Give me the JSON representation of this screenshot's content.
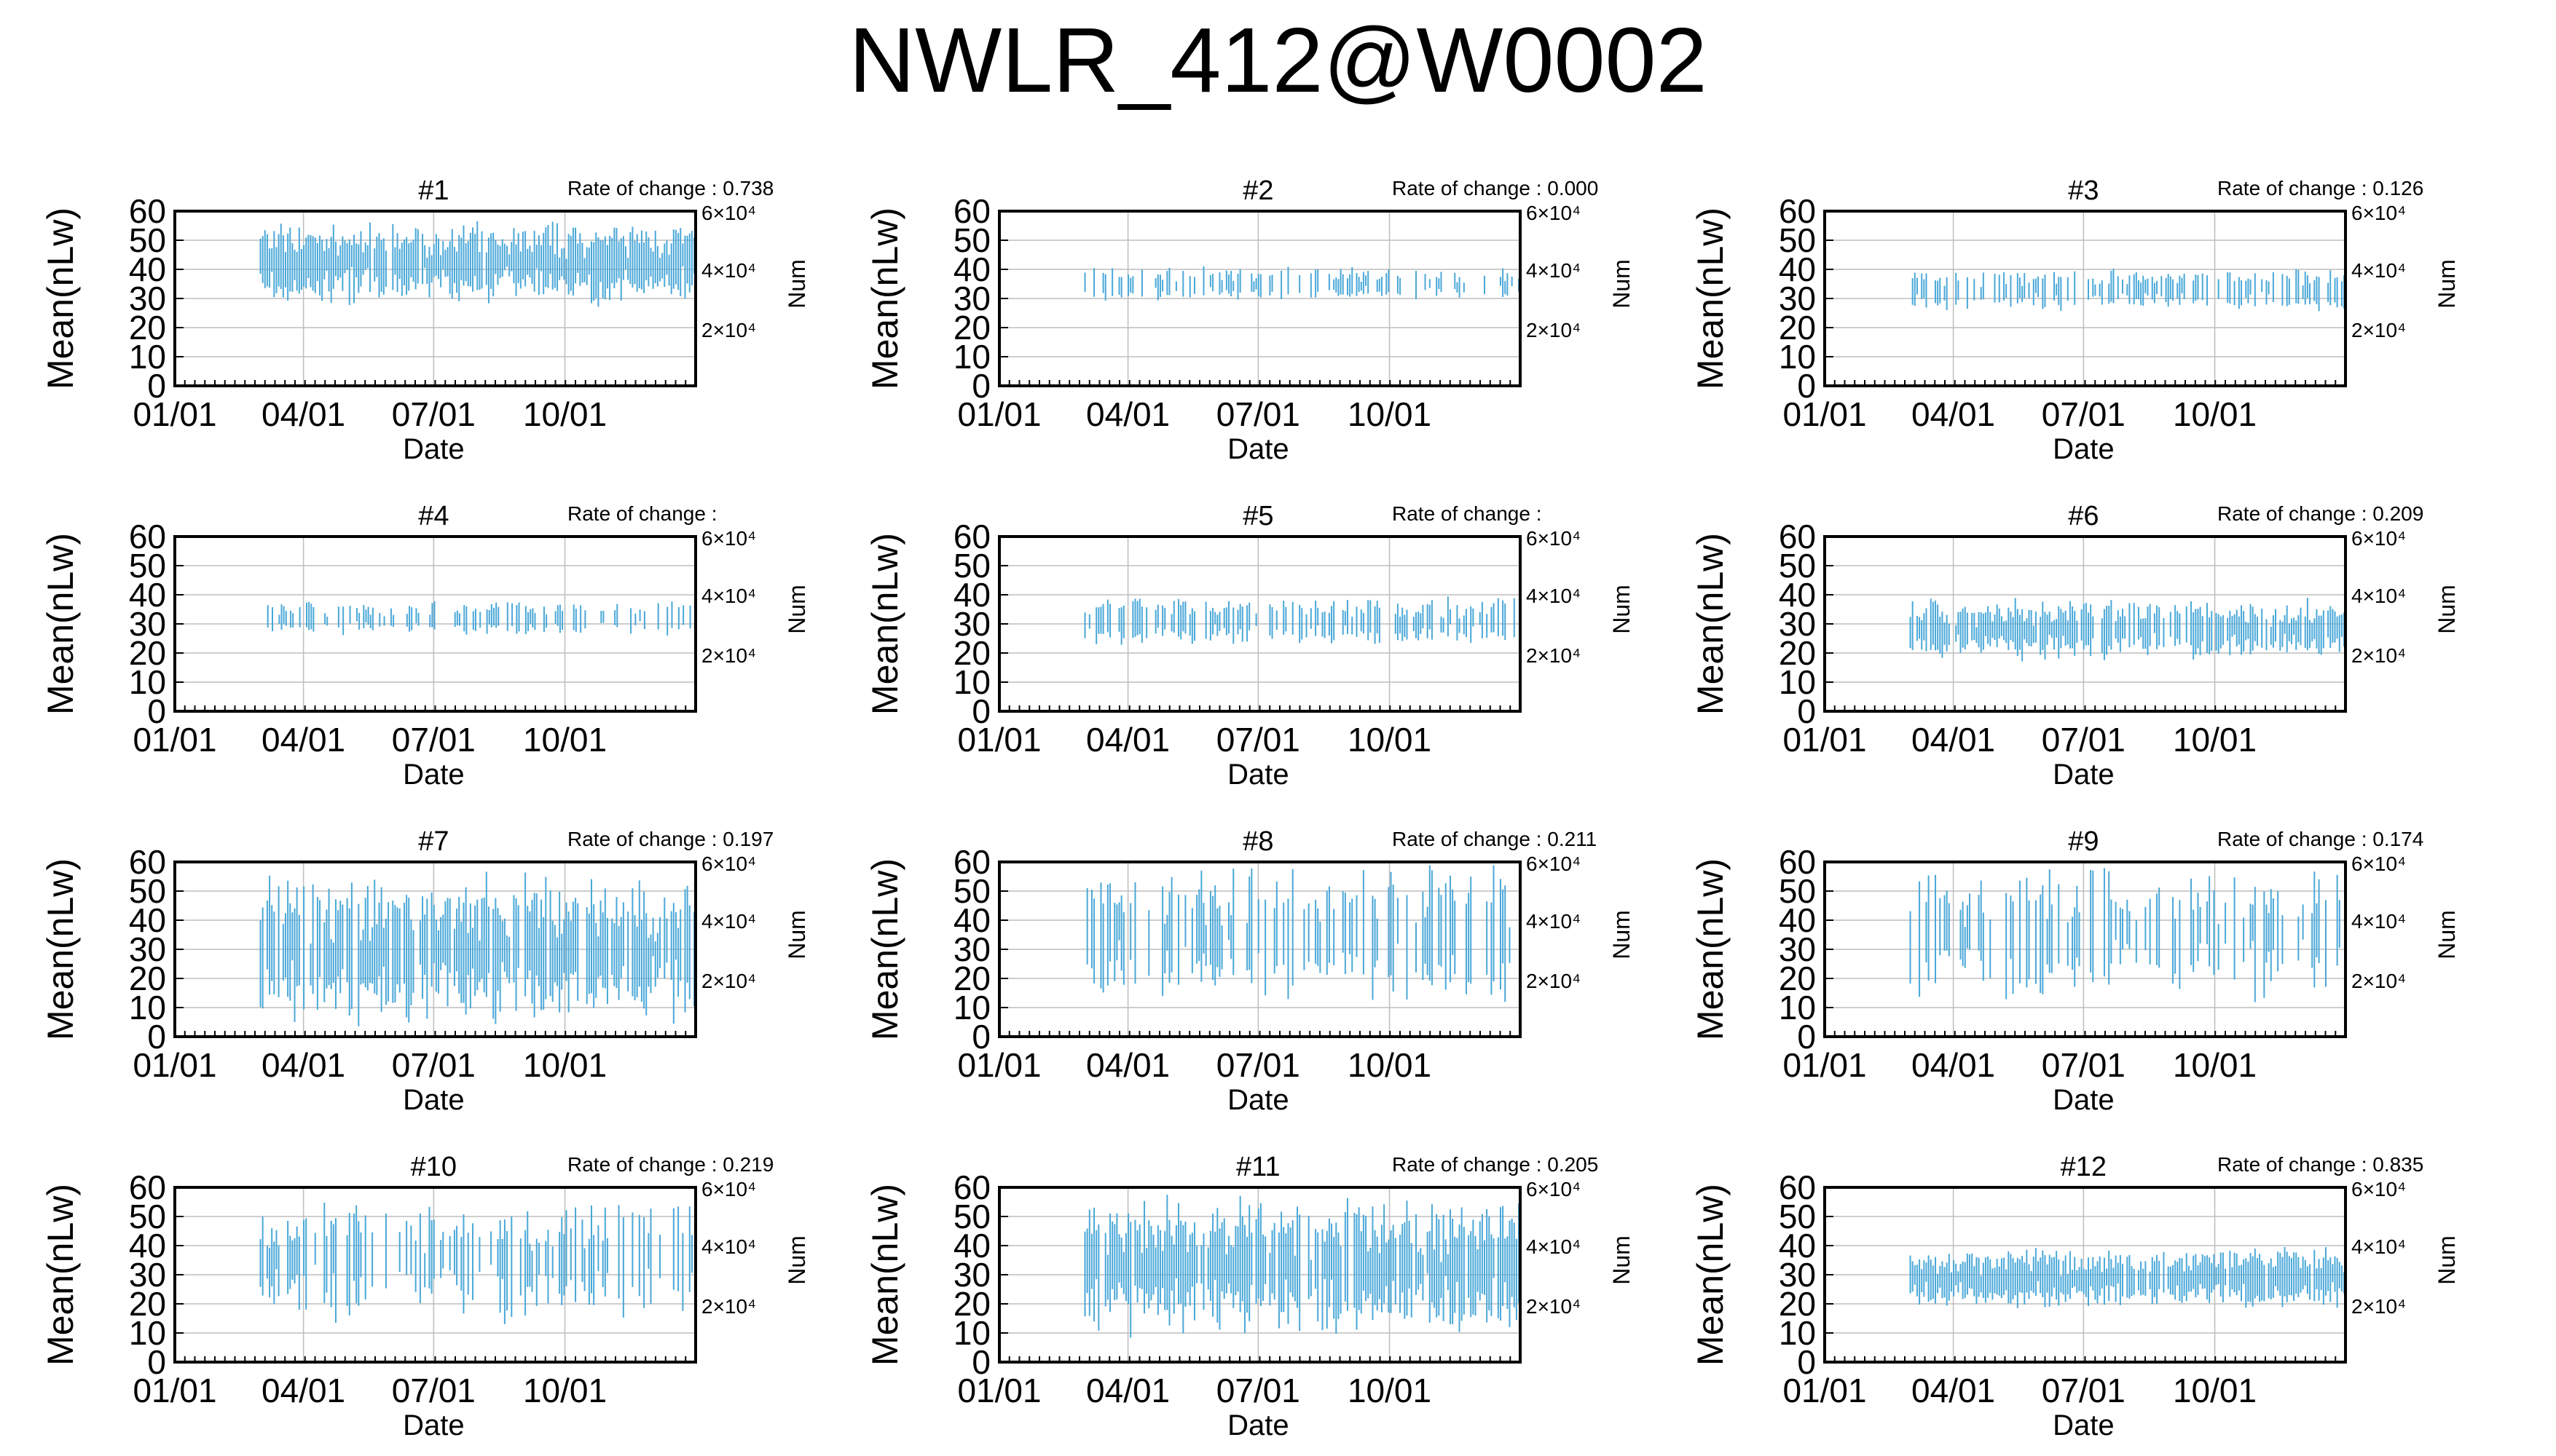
{
  "title": "NWLR_412@W0002",
  "chart_data": [
    {
      "type": "bar",
      "panel": "#1",
      "rate_label": "Rate of change : 0.738",
      "xlabel": "Date",
      "ylabel": "Mean(nLw)",
      "y2label": "Num",
      "xticks": [
        "01/01",
        "04/01",
        "07/01",
        "10/01"
      ],
      "yticks": [
        "0",
        "10",
        "20",
        "30",
        "40",
        "50",
        "60"
      ],
      "y2ticks": [
        "2×10⁴",
        "4×10⁴",
        "6×10⁴"
      ],
      "ylim": [
        0,
        60
      ],
      "grid": true,
      "color": "#4aa8d8",
      "mean": 42,
      "spread": 12,
      "start_day": 60,
      "density": 0.95
    },
    {
      "type": "bar",
      "panel": "#2",
      "rate_label": "Rate of change : 0.000",
      "xlabel": "Date",
      "ylabel": "Mean(nLw)",
      "y2label": "Num",
      "xticks": [
        "01/01",
        "04/01",
        "07/01",
        "10/01"
      ],
      "yticks": [
        "0",
        "10",
        "20",
        "30",
        "40",
        "50",
        "60"
      ],
      "y2ticks": [
        "2×10⁴",
        "4×10⁴",
        "6×10⁴"
      ],
      "ylim": [
        0,
        60
      ],
      "grid": true,
      "color": "#4aa8d8",
      "mean": 35,
      "spread": 5,
      "start_day": 60,
      "density": 0.45
    },
    {
      "type": "bar",
      "panel": "#3",
      "rate_label": "Rate of change : 0.126",
      "xlabel": "Date",
      "ylabel": "Mean(nLw)",
      "y2label": "Num",
      "xticks": [
        "01/01",
        "04/01",
        "07/01",
        "10/01"
      ],
      "yticks": [
        "0",
        "10",
        "20",
        "30",
        "40",
        "50",
        "60"
      ],
      "y2ticks": [
        "2×10⁴",
        "4×10⁴",
        "6×10⁴"
      ],
      "ylim": [
        0,
        60
      ],
      "grid": true,
      "color": "#4aa8d8",
      "mean": 33,
      "spread": 6,
      "start_day": 60,
      "density": 0.55
    },
    {
      "type": "bar",
      "panel": "#4",
      "rate_label": "Rate of change :",
      "xlabel": "Date",
      "ylabel": "Mean(nLw)",
      "y2label": "Num",
      "xticks": [
        "01/01",
        "04/01",
        "07/01",
        "10/01"
      ],
      "yticks": [
        "0",
        "10",
        "20",
        "30",
        "40",
        "50",
        "60"
      ],
      "y2ticks": [
        "2×10⁴",
        "4×10⁴",
        "6×10⁴"
      ],
      "ylim": [
        0,
        60
      ],
      "grid": true,
      "color": "#4aa8d8",
      "mean": 32,
      "spread": 5,
      "start_day": 62,
      "density": 0.45
    },
    {
      "type": "bar",
      "panel": "#5",
      "rate_label": "Rate of change :",
      "xlabel": "Date",
      "ylabel": "Mean(nLw)",
      "y2label": "Num",
      "xticks": [
        "01/01",
        "04/01",
        "07/01",
        "10/01"
      ],
      "yticks": [
        "0",
        "10",
        "20",
        "30",
        "40",
        "50",
        "60"
      ],
      "y2ticks": [
        "2×10⁴",
        "4×10⁴",
        "6×10⁴"
      ],
      "ylim": [
        0,
        60
      ],
      "grid": true,
      "color": "#4aa8d8",
      "mean": 31,
      "spread": 7,
      "start_day": 60,
      "density": 0.55
    },
    {
      "type": "bar",
      "panel": "#6",
      "rate_label": "Rate of change : 0.209",
      "xlabel": "Date",
      "ylabel": "Mean(nLw)",
      "y2label": "Num",
      "xticks": [
        "01/01",
        "04/01",
        "07/01",
        "10/01"
      ],
      "yticks": [
        "0",
        "10",
        "20",
        "30",
        "40",
        "50",
        "60"
      ],
      "y2ticks": [
        "2×10⁴",
        "4×10⁴",
        "6×10⁴"
      ],
      "ylim": [
        0,
        60
      ],
      "grid": true,
      "color": "#4aa8d8",
      "mean": 28,
      "spread": 9,
      "start_day": 60,
      "density": 0.8
    },
    {
      "type": "bar",
      "panel": "#7",
      "rate_label": "Rate of change : 0.197",
      "xlabel": "Date",
      "ylabel": "Mean(nLw)",
      "y2label": "Num",
      "xticks": [
        "01/01",
        "04/01",
        "07/01",
        "10/01"
      ],
      "yticks": [
        "0",
        "10",
        "20",
        "30",
        "40",
        "50",
        "60"
      ],
      "y2ticks": [
        "2×10⁴",
        "4×10⁴",
        "6×10⁴"
      ],
      "ylim": [
        0,
        60
      ],
      "grid": true,
      "color": "#4aa8d8",
      "mean": 30,
      "spread": 22,
      "start_day": 60,
      "density": 0.85
    },
    {
      "type": "bar",
      "panel": "#8",
      "rate_label": "Rate of change : 0.211",
      "xlabel": "Date",
      "ylabel": "Mean(nLw)",
      "y2label": "Num",
      "xticks": [
        "01/01",
        "04/01",
        "07/01",
        "10/01"
      ],
      "yticks": [
        "0",
        "10",
        "20",
        "30",
        "40",
        "50",
        "60"
      ],
      "y2ticks": [
        "2×10⁴",
        "4×10⁴",
        "6×10⁴"
      ],
      "ylim": [
        0,
        60
      ],
      "grid": true,
      "color": "#4aa8d8",
      "mean": 35,
      "spread": 20,
      "start_day": 60,
      "density": 0.5
    },
    {
      "type": "bar",
      "panel": "#9",
      "rate_label": "Rate of change : 0.174",
      "xlabel": "Date",
      "ylabel": "Mean(nLw)",
      "y2label": "Num",
      "xticks": [
        "01/01",
        "04/01",
        "07/01",
        "10/01"
      ],
      "yticks": [
        "0",
        "10",
        "20",
        "30",
        "40",
        "50",
        "60"
      ],
      "y2ticks": [
        "2×10⁴",
        "4×10⁴",
        "6×10⁴"
      ],
      "ylim": [
        0,
        60
      ],
      "grid": true,
      "color": "#4aa8d8",
      "mean": 35,
      "spread": 20,
      "start_day": 60,
      "density": 0.45
    },
    {
      "type": "bar",
      "panel": "#10",
      "rate_label": "Rate of change : 0.219",
      "xlabel": "Date",
      "ylabel": "Mean(nLw)",
      "y2label": "Num",
      "xticks": [
        "01/01",
        "04/01",
        "07/01",
        "10/01"
      ],
      "yticks": [
        "0",
        "10",
        "20",
        "30",
        "40",
        "50",
        "60"
      ],
      "y2ticks": [
        "2×10⁴",
        "4×10⁴",
        "6×10⁴"
      ],
      "ylim": [
        0,
        60
      ],
      "grid": true,
      "color": "#4aa8d8",
      "mean": 35,
      "spread": 18,
      "start_day": 60,
      "density": 0.5
    },
    {
      "type": "bar",
      "panel": "#11",
      "rate_label": "Rate of change : 0.205",
      "xlabel": "Date",
      "ylabel": "Mean(nLw)",
      "y2label": "Num",
      "xticks": [
        "01/01",
        "04/01",
        "07/01",
        "10/01"
      ],
      "yticks": [
        "0",
        "10",
        "20",
        "30",
        "40",
        "50",
        "60"
      ],
      "y2ticks": [
        "2×10⁴",
        "4×10⁴",
        "6×10⁴"
      ],
      "ylim": [
        0,
        60
      ],
      "grid": true,
      "color": "#4aa8d8",
      "mean": 33,
      "spread": 20,
      "start_day": 60,
      "density": 0.9
    },
    {
      "type": "bar",
      "panel": "#12",
      "rate_label": "Rate of change : 0.835",
      "xlabel": "Date",
      "ylabel": "Mean(nLw)",
      "y2label": "Num",
      "xticks": [
        "01/01",
        "04/01",
        "07/01",
        "10/01"
      ],
      "yticks": [
        "0",
        "10",
        "20",
        "30",
        "40",
        "50",
        "60"
      ],
      "y2ticks": [
        "2×10⁴",
        "4×10⁴",
        "6×10⁴"
      ],
      "ylim": [
        0,
        60
      ],
      "grid": true,
      "color": "#4aa8d8",
      "mean": 29,
      "spread": 9,
      "start_day": 60,
      "density": 0.95
    }
  ]
}
